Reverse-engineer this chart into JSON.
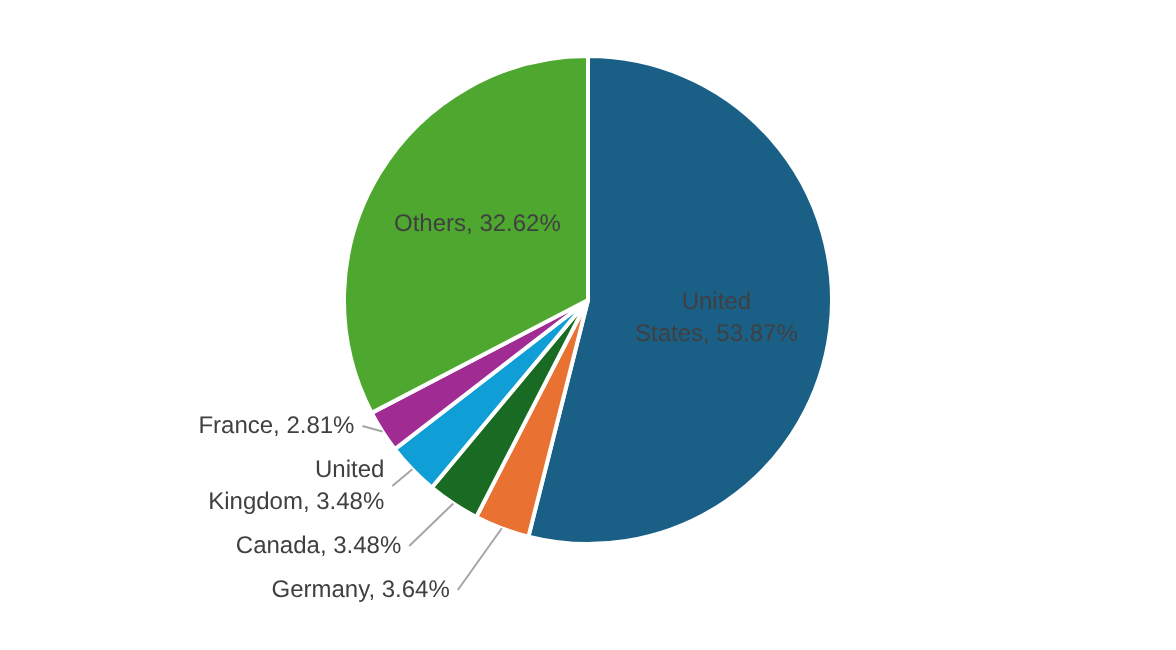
{
  "chart_data": {
    "type": "pie",
    "categories": [
      "United States",
      "Germany",
      "Canada",
      "United Kingdom",
      "France",
      "Others"
    ],
    "values": [
      53.87,
      3.64,
      3.48,
      3.48,
      2.81,
      32.62
    ],
    "colors": [
      "#1a5f85",
      "#e97132",
      "#196b24",
      "#0f9ed5",
      "#a02b93",
      "#4ea72e"
    ],
    "value_labels": [
      "53.87%",
      "3.64%",
      "3.48%",
      "3.48%",
      "2.81%",
      "32.62%"
    ],
    "legend": false
  }
}
